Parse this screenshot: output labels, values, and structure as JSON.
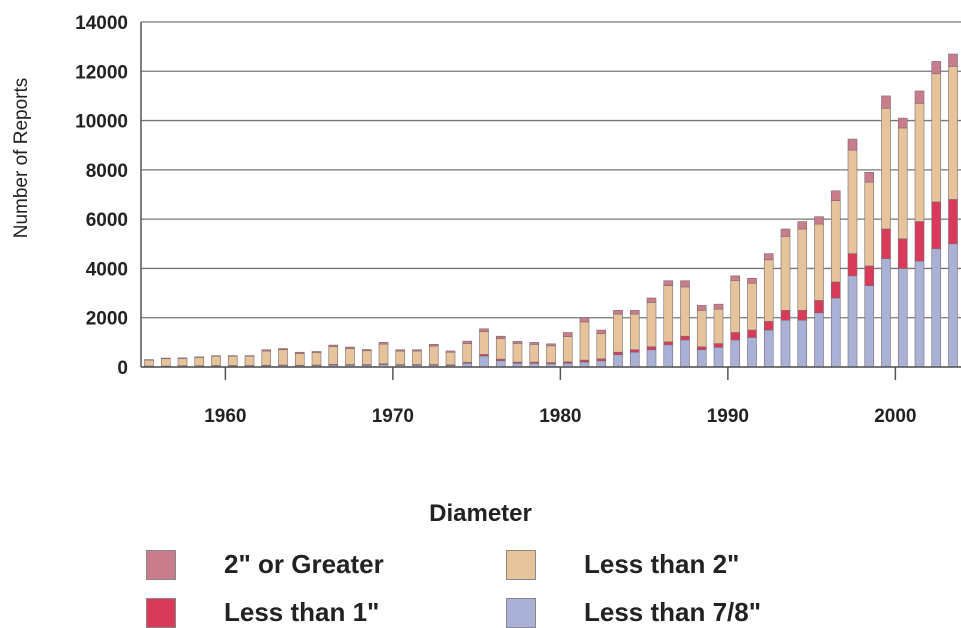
{
  "chart_data": {
    "type": "bar",
    "stacked": true,
    "ylabel": "Number of Reports",
    "xlabel": "",
    "ylim": [
      0,
      14000
    ],
    "yticks": [
      0,
      2000,
      4000,
      6000,
      8000,
      10000,
      12000,
      14000
    ],
    "xticks": [
      1960,
      1970,
      1980,
      1990,
      2000
    ],
    "grid": "horizontal",
    "legend_title": "Diameter",
    "legend_position": "bottom",
    "x": [
      1955,
      1956,
      1957,
      1958,
      1959,
      1960,
      1961,
      1962,
      1963,
      1964,
      1965,
      1966,
      1967,
      1968,
      1969,
      1970,
      1971,
      1972,
      1973,
      1974,
      1975,
      1976,
      1977,
      1978,
      1979,
      1980,
      1981,
      1982,
      1983,
      1984,
      1985,
      1986,
      1987,
      1988,
      1989,
      1990,
      1991,
      1992,
      1993,
      1994,
      1995,
      1996,
      1997,
      1998,
      1999,
      2000,
      2001,
      2002,
      2003
    ],
    "series": [
      {
        "name": "Less than 7/8\"",
        "color": "#a9b1d6",
        "values": [
          20,
          20,
          30,
          30,
          40,
          40,
          40,
          50,
          60,
          50,
          60,
          80,
          70,
          70,
          100,
          70,
          70,
          70,
          60,
          150,
          450,
          260,
          150,
          150,
          130,
          150,
          200,
          250,
          500,
          600,
          700,
          900,
          1100,
          700,
          800,
          1100,
          1200,
          1500,
          1900,
          1900,
          2200,
          2800,
          3700,
          3300,
          4400,
          4000,
          4300,
          4800,
          5000
        ]
      },
      {
        "name": "Less than 1\"",
        "color": "#d93a5a",
        "values": [
          20,
          20,
          20,
          20,
          20,
          20,
          20,
          20,
          20,
          20,
          20,
          30,
          30,
          30,
          30,
          30,
          30,
          30,
          30,
          40,
          60,
          60,
          50,
          50,
          50,
          60,
          80,
          80,
          100,
          100,
          120,
          120,
          150,
          120,
          150,
          300,
          300,
          350,
          400,
          400,
          500,
          650,
          900,
          800,
          1200,
          1200,
          1600,
          1900,
          1800
        ]
      },
      {
        "name": "Less than 2\"",
        "color": "#e6c39b",
        "values": [
          240,
          300,
          300,
          340,
          380,
          380,
          380,
          580,
          620,
          480,
          500,
          720,
          650,
          560,
          800,
          550,
          550,
          750,
          510,
          760,
          930,
          830,
          760,
          720,
          680,
          1020,
          1550,
          1020,
          1550,
          1450,
          1800,
          2280,
          2000,
          1480,
          1400,
          2100,
          1900,
          2500,
          3000,
          3300,
          3100,
          3300,
          4200,
          3400,
          4900,
          4500,
          4800,
          5200,
          5400
        ]
      },
      {
        "name": "2\" or Greater",
        "color": "#c97c8c",
        "values": [
          20,
          20,
          20,
          20,
          20,
          20,
          20,
          50,
          50,
          50,
          50,
          60,
          60,
          50,
          70,
          50,
          50,
          70,
          50,
          100,
          110,
          100,
          80,
          80,
          80,
          170,
          170,
          150,
          150,
          150,
          180,
          200,
          250,
          200,
          200,
          200,
          200,
          250,
          300,
          300,
          300,
          400,
          450,
          400,
          500,
          400,
          500,
          500,
          500
        ]
      }
    ]
  },
  "legend": {
    "title": "Diameter",
    "items": [
      {
        "label": "2\" or Greater",
        "color": "#c97c8c"
      },
      {
        "label": "Less than 2\"",
        "color": "#e6c39b"
      },
      {
        "label": "Less than 1\"",
        "color": "#d93a5a"
      },
      {
        "label": "Less than 7/8\"",
        "color": "#a9b1d6"
      }
    ]
  }
}
